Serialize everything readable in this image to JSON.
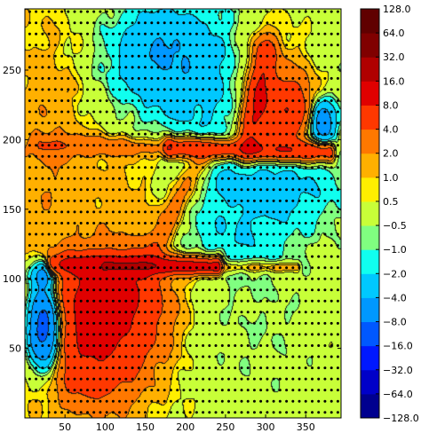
{
  "chart_data": {
    "type": "heatmap",
    "subtype": "filled-contour with stippled grid points",
    "title": "",
    "xlabel": "",
    "ylabel": "",
    "xlim": [
      0,
      394
    ],
    "ylim": [
      0,
      294
    ],
    "x_ticks": [
      50,
      100,
      150,
      200,
      250,
      300,
      350
    ],
    "y_ticks": [
      50,
      100,
      150,
      200,
      250
    ],
    "stipple_spacing": 8,
    "colorbar": {
      "levels": [
        -128.0,
        -64.0,
        -32.0,
        -16.0,
        -8.0,
        -4.0,
        -2.0,
        -1.0,
        -0.5,
        0.5,
        1.0,
        2.0,
        4.0,
        8.0,
        16.0,
        32.0,
        64.0,
        128.0
      ],
      "labels": [
        "−128.0",
        "−64.0",
        "−32.0",
        "−16.0",
        "−8.0",
        "−4.0",
        "−2.0",
        "−1.0",
        "−0.5",
        "0.5",
        "1.0",
        "2.0",
        "4.0",
        "8.0",
        "16.0",
        "32.0",
        "64.0",
        "128.0"
      ],
      "colors": [
        "#00008f",
        "#0000c8",
        "#0018ff",
        "#0058ff",
        "#0098ff",
        "#00c8ff",
        "#10ffef",
        "#80ff80",
        "#c8ff38",
        "#ffee00",
        "#ffb000",
        "#ff7800",
        "#ff3800",
        "#e00000",
        "#b00000",
        "#800000",
        "#600000"
      ]
    },
    "field_features": [
      {
        "kind": "gaussian",
        "x": 85,
        "y": 55,
        "sx": 50,
        "sy": 32,
        "value": 8
      },
      {
        "kind": "gaussian",
        "x": 95,
        "y": 95,
        "sx": 40,
        "sy": 18,
        "value": 5
      },
      {
        "kind": "gaussian",
        "x": 140,
        "y": 82,
        "sx": 35,
        "sy": 22,
        "value": 3
      },
      {
        "kind": "gaussian",
        "x": 25,
        "y": 65,
        "sx": 15,
        "sy": 22,
        "value": -14
      },
      {
        "kind": "gaussian",
        "x": 23,
        "y": 103,
        "sx": 14,
        "sy": 7,
        "value": -5
      },
      {
        "kind": "gaussian",
        "x": 290,
        "y": 65,
        "sx": 65,
        "sy": 40,
        "value": -0.7
      },
      {
        "kind": "gaussian",
        "x": 260,
        "y": 125,
        "sx": 60,
        "sy": 16,
        "value": -1.6
      },
      {
        "kind": "gaussian",
        "x": 305,
        "y": 165,
        "sx": 70,
        "sy": 20,
        "value": -2.8
      },
      {
        "kind": "gaussian",
        "x": 200,
        "y": 245,
        "sx": 110,
        "sy": 38,
        "value": -3.2
      },
      {
        "kind": "gaussian",
        "x": 175,
        "y": 270,
        "sx": 40,
        "sy": 18,
        "value": -2.0
      },
      {
        "kind": "gaussian",
        "x": 305,
        "y": 258,
        "sx": 40,
        "sy": 25,
        "value": 2.5
      },
      {
        "kind": "gaussian",
        "x": 325,
        "y": 220,
        "sx": 30,
        "sy": 18,
        "value": 8
      },
      {
        "kind": "gaussian",
        "x": 370,
        "y": 213,
        "sx": 12,
        "sy": 12,
        "value": -8
      },
      {
        "kind": "gaussian",
        "x": 40,
        "y": 240,
        "sx": 50,
        "sy": 45,
        "value": 1.8
      },
      {
        "kind": "gaussian",
        "x": 20,
        "y": 160,
        "sx": 40,
        "sy": 55,
        "value": 1.2
      },
      {
        "kind": "gaussian",
        "x": 130,
        "y": 170,
        "sx": 40,
        "sy": 40,
        "value": 1.3
      },
      {
        "kind": "ridge",
        "x1": 35,
        "y1": 110,
        "x2": 240,
        "y2": 110,
        "width": 5,
        "value": 6
      },
      {
        "kind": "ridge",
        "x1": 100,
        "y1": 109,
        "x2": 240,
        "y2": 108,
        "width": 3,
        "value": 6
      },
      {
        "kind": "ridge",
        "x1": 240,
        "y1": 108,
        "x2": 340,
        "y2": 108,
        "width": 3,
        "value": 2
      },
      {
        "kind": "ridge",
        "x1": 20,
        "y1": 196,
        "x2": 180,
        "y2": 194,
        "width": 5,
        "value": 2.5
      },
      {
        "kind": "ridge",
        "x1": 180,
        "y1": 194,
        "x2": 380,
        "y2": 191,
        "width": 5,
        "value": 7
      },
      {
        "kind": "ridge",
        "x1": 150,
        "y1": 110,
        "x2": 220,
        "y2": 185,
        "width": 9,
        "value": 3
      },
      {
        "kind": "ridge",
        "x1": 280,
        "y1": 200,
        "x2": 300,
        "y2": 260,
        "width": 10,
        "value": 6
      }
    ]
  }
}
